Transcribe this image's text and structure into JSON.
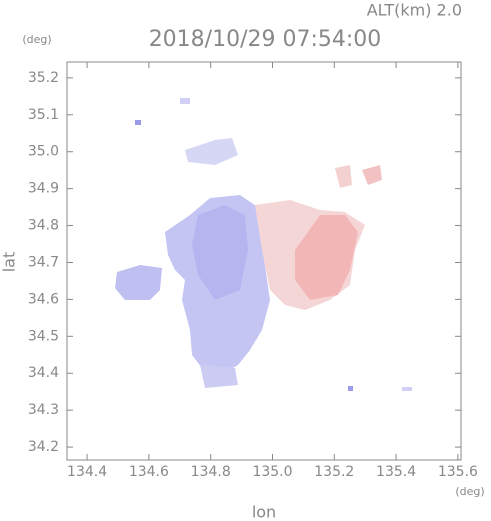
{
  "chart_data": {
    "type": "map",
    "title": "2018/10/29 07:54:00",
    "subtitle": "ALT(km) 2.0",
    "xlabel": "lon",
    "ylabel": "lat",
    "x_unit": "(deg)",
    "y_unit": "(deg)",
    "xlim": [
      134.335,
      135.61
    ],
    "ylim": [
      34.165,
      35.243
    ],
    "xticks": [
      134.4,
      134.6,
      134.8,
      {
        "value": 135,
        "label": "135.0"
      },
      135.2,
      135.4,
      135.6
    ],
    "yticks": [
      34.2,
      34.3,
      34.4,
      34.5,
      34.6,
      34.7,
      34.8,
      34.9,
      {
        "value": 35,
        "label": "35.0"
      },
      35.1,
      35.2
    ],
    "grid": false
  }
}
